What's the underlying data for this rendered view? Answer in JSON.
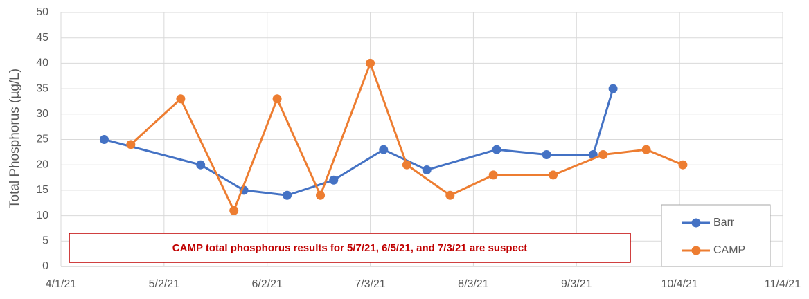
{
  "chart_data": {
    "type": "line",
    "ylabel": "Total Phosphorus (µg/L)",
    "annotation": "CAMP total phosphorus results for 5/7/21, 6/5/21, and 7/3/21 are suspect",
    "xlim": [
      "2021-04-01",
      "2021-11-04"
    ],
    "xticks": [
      {
        "value": "2021-04-01",
        "label": "4/1/21"
      },
      {
        "value": "2021-05-02",
        "label": "5/2/21"
      },
      {
        "value": "2021-06-02",
        "label": "6/2/21"
      },
      {
        "value": "2021-07-03",
        "label": "7/3/21"
      },
      {
        "value": "2021-08-03",
        "label": "8/3/21"
      },
      {
        "value": "2021-09-03",
        "label": "9/3/21"
      },
      {
        "value": "2021-10-04",
        "label": "10/4/21"
      },
      {
        "value": "2021-11-04",
        "label": "11/4/21"
      }
    ],
    "ylim": [
      0,
      50
    ],
    "yticks": [
      0,
      5,
      10,
      15,
      20,
      25,
      30,
      35,
      40,
      45,
      50
    ],
    "grid": true,
    "legend": "lower right",
    "series": [
      {
        "name": "Barr",
        "color": "#4472c4",
        "x": [
          "2021-04-14",
          "2021-05-13",
          "2021-05-26",
          "2021-06-08",
          "2021-06-22",
          "2021-07-07",
          "2021-07-20",
          "2021-08-10",
          "2021-08-25",
          "2021-09-08",
          "2021-09-14"
        ],
        "values": [
          25,
          20,
          15,
          14,
          17,
          23,
          19,
          23,
          22,
          22,
          35
        ]
      },
      {
        "name": "CAMP",
        "color": "#ed7d31",
        "x": [
          "2021-04-22",
          "2021-05-07",
          "2021-05-23",
          "2021-06-05",
          "2021-06-18",
          "2021-07-03",
          "2021-07-14",
          "2021-07-27",
          "2021-08-09",
          "2021-08-27",
          "2021-09-11",
          "2021-09-24",
          "2021-10-05"
        ],
        "values": [
          24,
          33,
          11,
          33,
          14,
          40,
          20,
          14,
          18,
          18,
          22,
          23,
          20
        ]
      }
    ]
  }
}
